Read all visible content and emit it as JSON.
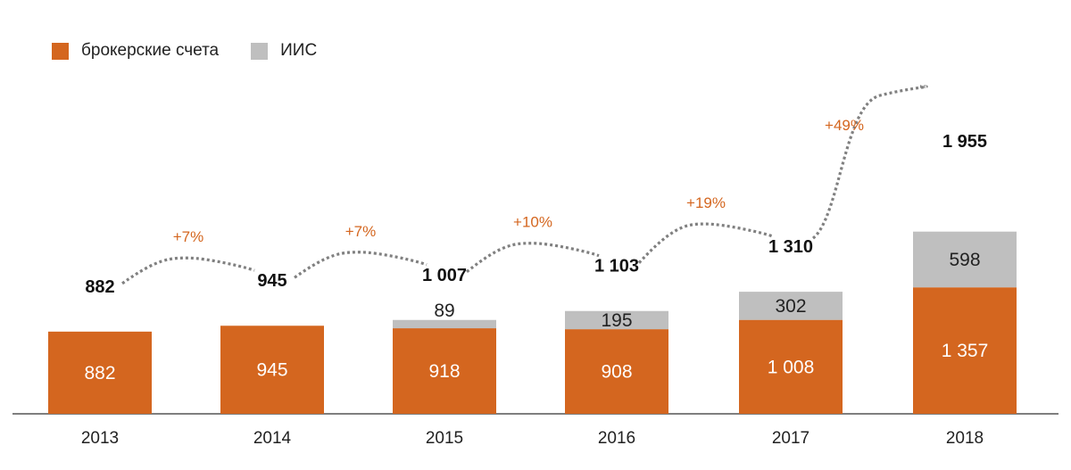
{
  "legend": {
    "brokerage_label": "брокерские счета",
    "iis_label": "ИИС"
  },
  "colors": {
    "brokerage": "#d4661f",
    "iis": "#bfbfbf",
    "growth": "#d4661f",
    "connector": "#808080",
    "axis": "#555555"
  },
  "chart_data": {
    "type": "bar",
    "stacked": true,
    "categories": [
      "2013",
      "2014",
      "2015",
      "2016",
      "2017",
      "2018"
    ],
    "series": [
      {
        "name": "брокерские счета",
        "values": [
          882,
          945,
          918,
          908,
          1008,
          1357
        ],
        "labels": [
          "882",
          "945",
          "918",
          "908",
          "1 008",
          "1 357"
        ]
      },
      {
        "name": "ИИС",
        "values": [
          0,
          0,
          89,
          195,
          302,
          598
        ],
        "labels": [
          "",
          "",
          "89",
          "195",
          "302",
          "598"
        ]
      }
    ],
    "totals": [
      882,
      945,
      1007,
      1103,
      1310,
      1955
    ],
    "total_labels": [
      "882",
      "945",
      "1 007",
      "1 103",
      "1 310",
      "1 955"
    ],
    "growth_labels": [
      "+7%",
      "+7%",
      "+10%",
      "+19%",
      "+49%"
    ],
    "legend_position": "top-left",
    "grid": false
  }
}
